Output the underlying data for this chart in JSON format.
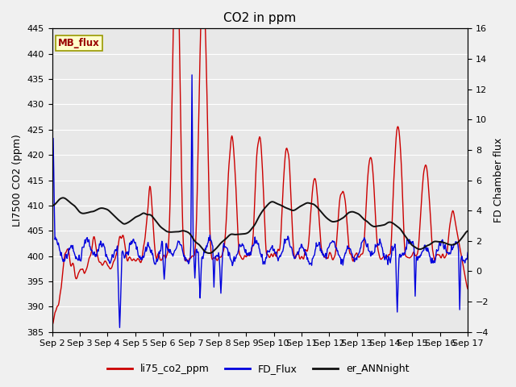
{
  "title": "CO2 in ppm",
  "ylabel_left": "LI7500 CO2 (ppm)",
  "ylabel_right": "FD Chamber flux",
  "ylim_left": [
    385,
    445
  ],
  "ylim_right": [
    -4,
    16
  ],
  "yticks_left": [
    385,
    390,
    395,
    400,
    405,
    410,
    415,
    420,
    425,
    430,
    435,
    440,
    445
  ],
  "yticks_right": [
    -4,
    -2,
    0,
    2,
    4,
    6,
    8,
    10,
    12,
    14,
    16
  ],
  "xtick_labels": [
    "Sep 2",
    "Sep 3",
    "Sep 4",
    "Sep 5",
    "Sep 6",
    "Sep 7",
    "Sep 8",
    "Sep 9",
    "Sep 10",
    "Sep 11",
    "Sep 12",
    "Sep 13",
    "Sep 14",
    "Sep 15",
    "Sep 16",
    "Sep 17"
  ],
  "color_red": "#cc0000",
  "color_blue": "#0000dd",
  "color_black": "#111111",
  "fig_bg": "#f0f0f0",
  "plot_bg": "#e8e8e8",
  "grid_color": "#ffffff",
  "mb_flux_bg": "#ffffcc",
  "mb_flux_text": "#990000",
  "mb_flux_border": "#999900",
  "legend_labels": [
    "li75_co2_ppm",
    "FD_Flux",
    "er_ANNnight"
  ],
  "title_fontsize": 11,
  "label_fontsize": 9,
  "tick_fontsize": 8,
  "linewidth_red": 1.0,
  "linewidth_blue": 1.0,
  "linewidth_black": 1.4
}
